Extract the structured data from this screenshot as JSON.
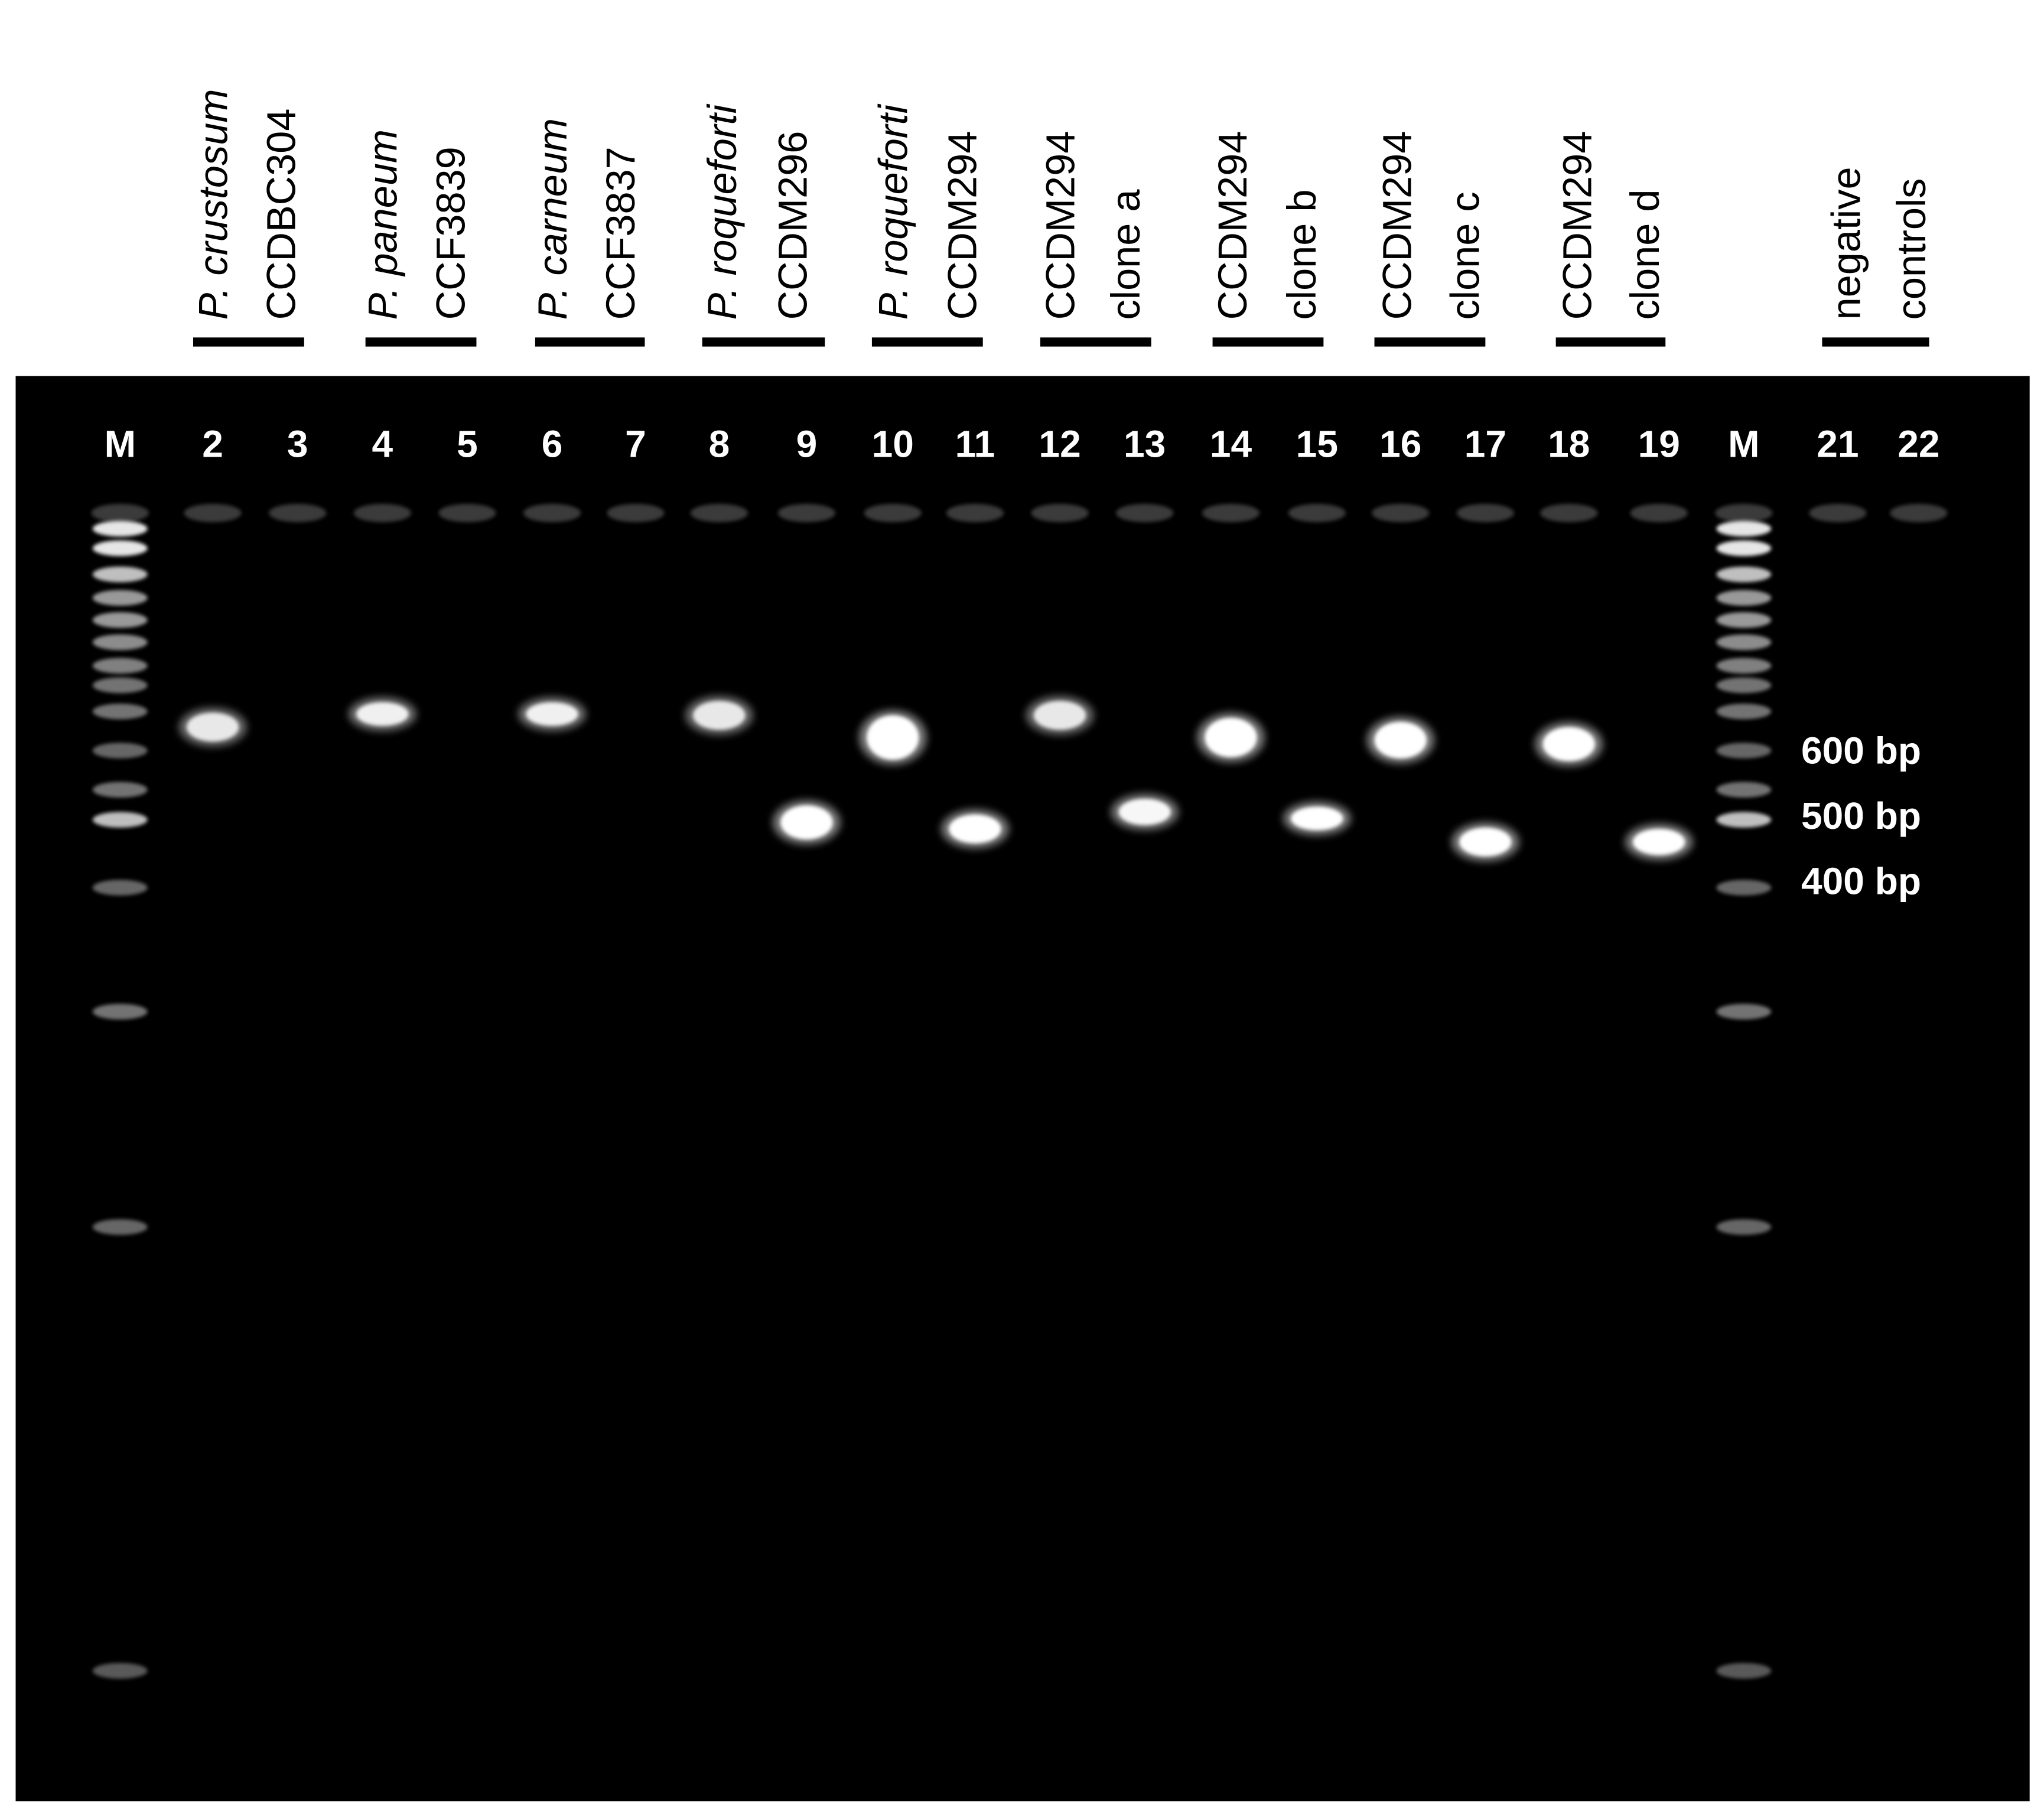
{
  "groups": [
    {
      "lines": [
        {
          "text": "P. crustosum",
          "italic": true
        },
        {
          "text": "CCDBC304",
          "italic": false
        }
      ]
    },
    {
      "lines": [
        {
          "text": "P. paneum",
          "italic": true
        },
        {
          "text": "CCF3839",
          "italic": false
        }
      ]
    },
    {
      "lines": [
        {
          "text": "P. carneum",
          "italic": true
        },
        {
          "text": "CCF3837",
          "italic": false
        }
      ]
    },
    {
      "lines": [
        {
          "text": "P. roqueforti",
          "italic": true
        },
        {
          "text": "CCDM296",
          "italic": false
        }
      ]
    },
    {
      "lines": [
        {
          "text": "P. roqueforti",
          "italic": true
        },
        {
          "text": "CCDM294",
          "italic": false
        }
      ]
    },
    {
      "lines": [
        {
          "text": "CCDM294",
          "italic": false
        },
        {
          "text": "clone a",
          "italic": false
        }
      ]
    },
    {
      "lines": [
        {
          "text": "CCDM294",
          "italic": false
        },
        {
          "text": "clone b",
          "italic": false
        }
      ]
    },
    {
      "lines": [
        {
          "text": "CCDM294",
          "italic": false
        },
        {
          "text": "clone c",
          "italic": false
        }
      ]
    },
    {
      "lines": [
        {
          "text": "CCDM294",
          "italic": false
        },
        {
          "text": "clone d",
          "italic": false
        }
      ]
    },
    {
      "lines": [
        {
          "text": "negative",
          "italic": false
        },
        {
          "text": "controls",
          "italic": false
        }
      ]
    }
  ],
  "lanes": [
    "M",
    "2",
    "3",
    "4",
    "5",
    "6",
    "7",
    "8",
    "9",
    "10",
    "11",
    "12",
    "13",
    "14",
    "15",
    "16",
    "17",
    "18",
    "19",
    "M",
    "21",
    "22"
  ],
  "size_markers": [
    "600 bp",
    "500 bp",
    "400 bp"
  ]
}
